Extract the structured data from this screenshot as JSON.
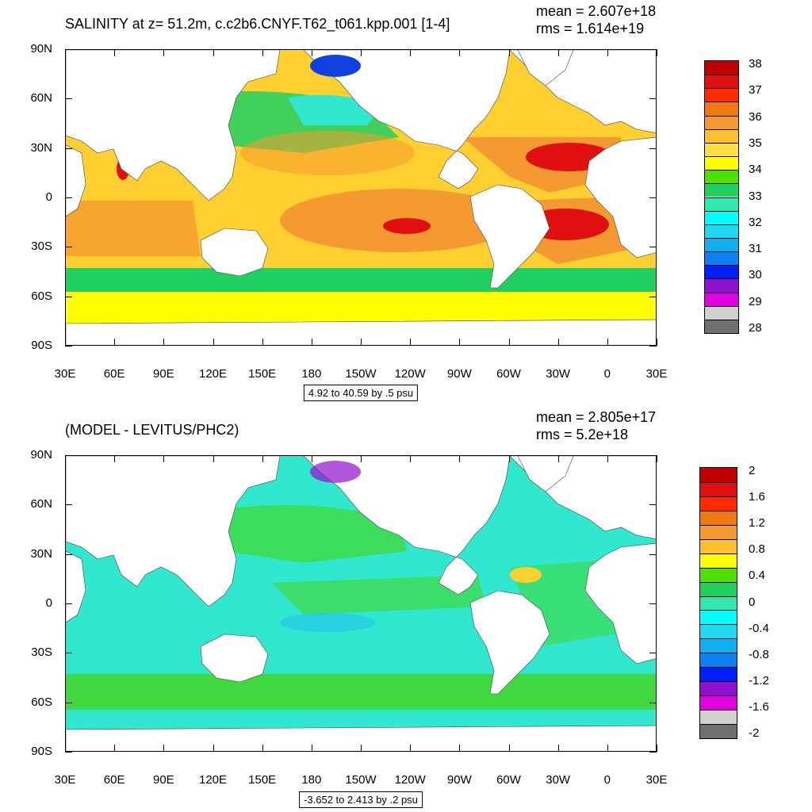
{
  "top_panel": {
    "title": "SALINITY at z=  51.2m, c.c2b6.CNYF.T62_t061.kpp.001 [1-4]",
    "mean_label": "mean = 2.607e+18",
    "rms_label": "rms = 1.614e+19",
    "range_label": "4.92 to 40.59 by .5 psu",
    "legend": {
      "labels": [
        "38",
        "37",
        "36",
        "35",
        "34",
        "33",
        "32",
        "31",
        "30",
        "29",
        "28"
      ],
      "colors": [
        "#c00000",
        "#e01010",
        "#ff2a00",
        "#f07a10",
        "#f59a30",
        "#ffc030",
        "#ffe040",
        "#ffff00",
        "#50e000",
        "#20d060",
        "#30e8b0",
        "#00ffff",
        "#20d8f0",
        "#10b0f0",
        "#1080f0",
        "#0020ff",
        "#9010d0",
        "#e000e0",
        "#d0d0d0",
        "#707070"
      ]
    }
  },
  "bottom_panel": {
    "title": "(MODEL - LEVITUS/PHC2)",
    "mean_label": "mean = 2.805e+17",
    "rms_label": "rms = 5.2e+18",
    "range_label": "-3.652 to 2.413 by .2 psu",
    "legend": {
      "labels": [
        "2",
        "1.6",
        "1.2",
        "0.8",
        "0.4",
        "0",
        "-0.4",
        "-0.8",
        "-1.2",
        "-1.6",
        "-2"
      ],
      "colors": [
        "#c00000",
        "#e01010",
        "#ff2a00",
        "#f07a10",
        "#f59a30",
        "#ffc030",
        "#ffff00",
        "#50e000",
        "#20d060",
        "#30e8b0",
        "#00ffff",
        "#20d8f0",
        "#10b0f0",
        "#1080f0",
        "#0020ff",
        "#9010d0",
        "#e000e0",
        "#d0d0d0",
        "#707070"
      ]
    }
  },
  "axes": {
    "lat_labels": [
      "90N",
      "60N",
      "30N",
      "0",
      "30S",
      "60S",
      "90S"
    ],
    "lon_labels": [
      "30E",
      "60E",
      "90E",
      "120E",
      "150E",
      "180",
      "150W",
      "120W",
      "90W",
      "60W",
      "30W",
      "0",
      "30E"
    ]
  },
  "map_palette": {
    "land": "#ffffff",
    "top_base": "#ffd030",
    "top_high": "#f59a30",
    "top_max": "#e01010",
    "top_low": "#20d060",
    "top_yellow": "#ffff00",
    "top_cyan": "#30e8d0",
    "top_arctic": "#1040e0",
    "bot_base": "#30e8d0",
    "bot_green": "#40d840",
    "bot_pos": "#ffd030",
    "bot_neg": "#20b8f0"
  }
}
